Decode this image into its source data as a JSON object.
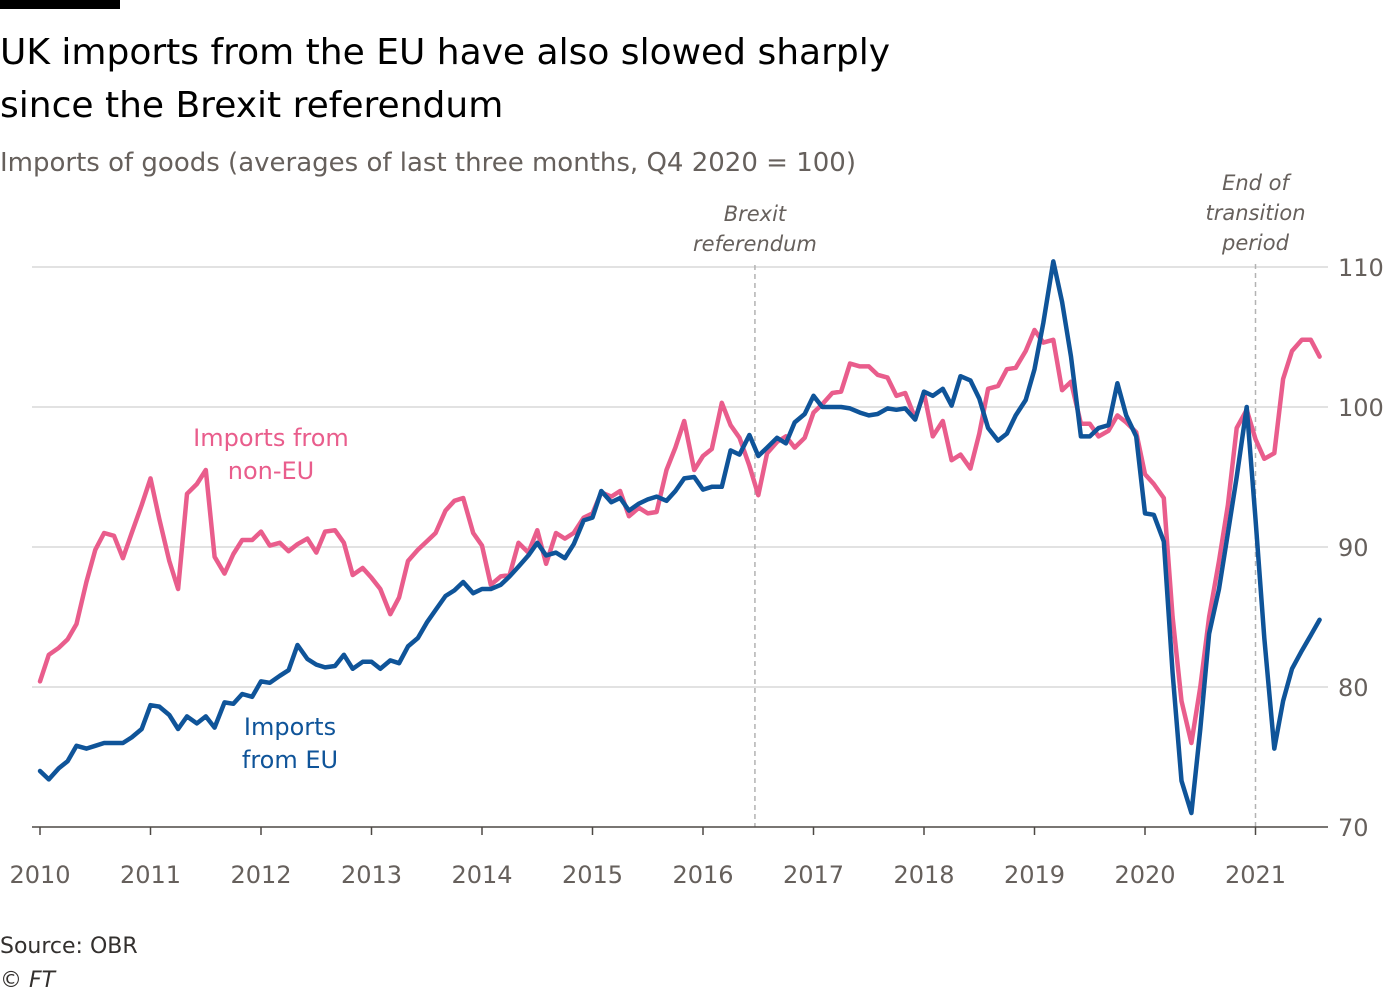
{
  "header": {
    "title_line1": "UK imports from the EU have also slowed sharply",
    "title_line2": "since the Brexit referendum",
    "subtitle": "Imports of goods (averages of last three months, Q4 2020 = 100)"
  },
  "footer": {
    "source": "Source: OBR",
    "credit": "© FT"
  },
  "colors": {
    "eu": "#0f5499",
    "non_eu": "#e95d8c",
    "grid": "#d9d9d9",
    "axis_text": "#66605c",
    "annotation": "#66605c"
  },
  "chart_data": {
    "type": "line",
    "title": "UK imports from the EU have also slowed sharply since the Brexit referendum",
    "subtitle": "Imports of goods (averages of last three months, Q4 2020 = 100)",
    "xlabel": "",
    "ylabel": "",
    "xlim": [
      2010,
      2021.75
    ],
    "ylim": [
      70,
      110
    ],
    "y_axis_position": "right",
    "yticks": [
      70,
      80,
      90,
      100,
      110
    ],
    "xticks": [
      "2010",
      "2011",
      "2012",
      "2013",
      "2014",
      "2015",
      "2016",
      "2017",
      "2018",
      "2019",
      "2020",
      "2021"
    ],
    "grid": "horizontal",
    "annotations": [
      {
        "x": 2016.47,
        "line1": "Brexit",
        "line2": "referendum",
        "line3": ""
      },
      {
        "x": 2021.0,
        "line1": "End of",
        "line2": "transition",
        "line3": "period"
      }
    ],
    "series": [
      {
        "name": "Imports from non-EU",
        "label_line1": "Imports from",
        "label_line2": "non-EU",
        "color": "#e95d8c",
        "points": [
          [
            2010.0,
            80.4
          ],
          [
            2010.08,
            82.3
          ],
          [
            2010.17,
            82.8
          ],
          [
            2010.25,
            83.4
          ],
          [
            2010.33,
            84.5
          ],
          [
            2010.42,
            87.5
          ],
          [
            2010.5,
            89.8
          ],
          [
            2010.58,
            91.0
          ],
          [
            2010.67,
            90.8
          ],
          [
            2010.75,
            89.2
          ],
          [
            2010.83,
            91.0
          ],
          [
            2010.92,
            93.0
          ],
          [
            2011.0,
            94.9
          ],
          [
            2011.08,
            92.0
          ],
          [
            2011.17,
            89.0
          ],
          [
            2011.25,
            87.0
          ],
          [
            2011.33,
            93.8
          ],
          [
            2011.42,
            94.5
          ],
          [
            2011.5,
            95.5
          ],
          [
            2011.58,
            89.3
          ],
          [
            2011.67,
            88.1
          ],
          [
            2011.75,
            89.5
          ],
          [
            2011.83,
            90.5
          ],
          [
            2011.92,
            90.5
          ],
          [
            2012.0,
            91.1
          ],
          [
            2012.08,
            90.1
          ],
          [
            2012.17,
            90.3
          ],
          [
            2012.25,
            89.7
          ],
          [
            2012.33,
            90.2
          ],
          [
            2012.42,
            90.6
          ],
          [
            2012.5,
            89.6
          ],
          [
            2012.58,
            91.1
          ],
          [
            2012.67,
            91.2
          ],
          [
            2012.75,
            90.3
          ],
          [
            2012.83,
            88.0
          ],
          [
            2012.92,
            88.5
          ],
          [
            2013.0,
            87.8
          ],
          [
            2013.08,
            87.0
          ],
          [
            2013.17,
            85.2
          ],
          [
            2013.25,
            86.4
          ],
          [
            2013.33,
            89.0
          ],
          [
            2013.42,
            89.8
          ],
          [
            2013.5,
            90.4
          ],
          [
            2013.58,
            91.0
          ],
          [
            2013.67,
            92.6
          ],
          [
            2013.75,
            93.3
          ],
          [
            2013.83,
            93.5
          ],
          [
            2013.92,
            91.0
          ],
          [
            2014.0,
            90.1
          ],
          [
            2014.08,
            87.3
          ],
          [
            2014.17,
            87.9
          ],
          [
            2014.25,
            88.0
          ],
          [
            2014.33,
            90.3
          ],
          [
            2014.42,
            89.6
          ],
          [
            2014.5,
            91.2
          ],
          [
            2014.58,
            88.8
          ],
          [
            2014.67,
            91.0
          ],
          [
            2014.75,
            90.6
          ],
          [
            2014.83,
            91.0
          ],
          [
            2014.92,
            92.1
          ],
          [
            2015.0,
            92.4
          ],
          [
            2015.08,
            93.9
          ],
          [
            2015.17,
            93.6
          ],
          [
            2015.25,
            94.0
          ],
          [
            2015.33,
            92.2
          ],
          [
            2015.42,
            92.8
          ],
          [
            2015.5,
            92.4
          ],
          [
            2015.58,
            92.5
          ],
          [
            2015.67,
            95.5
          ],
          [
            2015.75,
            97.1
          ],
          [
            2015.83,
            99.0
          ],
          [
            2015.92,
            95.5
          ],
          [
            2016.0,
            96.5
          ],
          [
            2016.08,
            97.0
          ],
          [
            2016.17,
            100.3
          ],
          [
            2016.25,
            98.7
          ],
          [
            2016.33,
            97.8
          ],
          [
            2016.42,
            95.8
          ],
          [
            2016.5,
            93.7
          ],
          [
            2016.58,
            96.7
          ],
          [
            2016.67,
            97.5
          ],
          [
            2016.75,
            97.9
          ],
          [
            2016.83,
            97.1
          ],
          [
            2016.92,
            97.8
          ],
          [
            2017.0,
            99.6
          ],
          [
            2017.08,
            100.2
          ],
          [
            2017.17,
            101.0
          ],
          [
            2017.25,
            101.1
          ],
          [
            2017.33,
            103.1
          ],
          [
            2017.42,
            102.9
          ],
          [
            2017.5,
            102.9
          ],
          [
            2017.58,
            102.3
          ],
          [
            2017.67,
            102.1
          ],
          [
            2017.75,
            100.8
          ],
          [
            2017.83,
            101.0
          ],
          [
            2017.92,
            99.2
          ],
          [
            2018.0,
            101.0
          ],
          [
            2018.08,
            97.9
          ],
          [
            2018.17,
            99.0
          ],
          [
            2018.25,
            96.2
          ],
          [
            2018.33,
            96.6
          ],
          [
            2018.42,
            95.6
          ],
          [
            2018.5,
            98.1
          ],
          [
            2018.58,
            101.3
          ],
          [
            2018.67,
            101.5
          ],
          [
            2018.75,
            102.7
          ],
          [
            2018.83,
            102.8
          ],
          [
            2018.92,
            104.0
          ],
          [
            2019.0,
            105.5
          ],
          [
            2019.08,
            104.6
          ],
          [
            2019.17,
            104.8
          ],
          [
            2019.25,
            101.2
          ],
          [
            2019.33,
            101.8
          ],
          [
            2019.42,
            98.8
          ],
          [
            2019.5,
            98.8
          ],
          [
            2019.58,
            97.9
          ],
          [
            2019.67,
            98.3
          ],
          [
            2019.75,
            99.4
          ],
          [
            2019.83,
            98.9
          ],
          [
            2019.92,
            98.2
          ],
          [
            2020.0,
            95.2
          ],
          [
            2020.08,
            94.5
          ],
          [
            2020.17,
            93.5
          ],
          [
            2020.25,
            85.0
          ],
          [
            2020.33,
            79.0
          ],
          [
            2020.42,
            76.0
          ],
          [
            2020.5,
            80.0
          ],
          [
            2020.58,
            85.0
          ],
          [
            2020.67,
            89.0
          ],
          [
            2020.75,
            93.0
          ],
          [
            2020.83,
            98.5
          ],
          [
            2020.92,
            99.8
          ],
          [
            2021.0,
            97.7
          ],
          [
            2021.08,
            96.3
          ],
          [
            2021.17,
            96.7
          ],
          [
            2021.25,
            102.0
          ],
          [
            2021.33,
            104.0
          ],
          [
            2021.42,
            104.8
          ],
          [
            2021.5,
            104.8
          ],
          [
            2021.58,
            103.6
          ]
        ]
      },
      {
        "name": "Imports from EU",
        "label_line1": "Imports",
        "label_line2": "from EU",
        "color": "#0f5499",
        "points": [
          [
            2010.0,
            74.0
          ],
          [
            2010.08,
            73.4
          ],
          [
            2010.17,
            74.2
          ],
          [
            2010.25,
            74.7
          ],
          [
            2010.33,
            75.8
          ],
          [
            2010.42,
            75.6
          ],
          [
            2010.5,
            75.8
          ],
          [
            2010.58,
            76.0
          ],
          [
            2010.67,
            76.0
          ],
          [
            2010.75,
            76.0
          ],
          [
            2010.83,
            76.4
          ],
          [
            2010.92,
            77.0
          ],
          [
            2011.0,
            78.7
          ],
          [
            2011.08,
            78.6
          ],
          [
            2011.17,
            78.0
          ],
          [
            2011.25,
            77.0
          ],
          [
            2011.33,
            77.9
          ],
          [
            2011.42,
            77.4
          ],
          [
            2011.5,
            77.9
          ],
          [
            2011.58,
            77.1
          ],
          [
            2011.67,
            78.9
          ],
          [
            2011.75,
            78.8
          ],
          [
            2011.83,
            79.5
          ],
          [
            2011.92,
            79.3
          ],
          [
            2012.0,
            80.4
          ],
          [
            2012.08,
            80.3
          ],
          [
            2012.17,
            80.8
          ],
          [
            2012.25,
            81.2
          ],
          [
            2012.33,
            83.0
          ],
          [
            2012.42,
            82.0
          ],
          [
            2012.5,
            81.6
          ],
          [
            2012.58,
            81.4
          ],
          [
            2012.67,
            81.5
          ],
          [
            2012.75,
            82.3
          ],
          [
            2012.83,
            81.3
          ],
          [
            2012.92,
            81.8
          ],
          [
            2013.0,
            81.8
          ],
          [
            2013.08,
            81.3
          ],
          [
            2013.17,
            81.9
          ],
          [
            2013.25,
            81.7
          ],
          [
            2013.33,
            82.9
          ],
          [
            2013.42,
            83.5
          ],
          [
            2013.5,
            84.6
          ],
          [
            2013.58,
            85.5
          ],
          [
            2013.67,
            86.5
          ],
          [
            2013.75,
            86.9
          ],
          [
            2013.83,
            87.5
          ],
          [
            2013.92,
            86.7
          ],
          [
            2014.0,
            87.0
          ],
          [
            2014.08,
            87.0
          ],
          [
            2014.17,
            87.3
          ],
          [
            2014.25,
            87.9
          ],
          [
            2014.33,
            88.6
          ],
          [
            2014.42,
            89.4
          ],
          [
            2014.5,
            90.3
          ],
          [
            2014.58,
            89.4
          ],
          [
            2014.67,
            89.6
          ],
          [
            2014.75,
            89.2
          ],
          [
            2014.83,
            90.2
          ],
          [
            2014.92,
            91.9
          ],
          [
            2015.0,
            92.1
          ],
          [
            2015.08,
            94.0
          ],
          [
            2015.17,
            93.2
          ],
          [
            2015.25,
            93.5
          ],
          [
            2015.33,
            92.6
          ],
          [
            2015.42,
            93.1
          ],
          [
            2015.5,
            93.4
          ],
          [
            2015.58,
            93.6
          ],
          [
            2015.67,
            93.3
          ],
          [
            2015.75,
            94.0
          ],
          [
            2015.83,
            94.9
          ],
          [
            2015.92,
            95.0
          ],
          [
            2016.0,
            94.1
          ],
          [
            2016.08,
            94.3
          ],
          [
            2016.17,
            94.3
          ],
          [
            2016.25,
            96.9
          ],
          [
            2016.33,
            96.6
          ],
          [
            2016.42,
            98.0
          ],
          [
            2016.5,
            96.5
          ],
          [
            2016.58,
            97.1
          ],
          [
            2016.67,
            97.8
          ],
          [
            2016.75,
            97.4
          ],
          [
            2016.83,
            98.9
          ],
          [
            2016.92,
            99.5
          ],
          [
            2017.0,
            100.8
          ],
          [
            2017.08,
            100.0
          ],
          [
            2017.17,
            100.0
          ],
          [
            2017.25,
            100.0
          ],
          [
            2017.33,
            99.9
          ],
          [
            2017.42,
            99.6
          ],
          [
            2017.5,
            99.4
          ],
          [
            2017.58,
            99.5
          ],
          [
            2017.67,
            99.9
          ],
          [
            2017.75,
            99.8
          ],
          [
            2017.83,
            99.9
          ],
          [
            2017.92,
            99.1
          ],
          [
            2018.0,
            101.1
          ],
          [
            2018.08,
            100.8
          ],
          [
            2018.17,
            101.3
          ],
          [
            2018.25,
            100.1
          ],
          [
            2018.33,
            102.2
          ],
          [
            2018.42,
            101.9
          ],
          [
            2018.5,
            100.6
          ],
          [
            2018.58,
            98.5
          ],
          [
            2018.67,
            97.6
          ],
          [
            2018.75,
            98.1
          ],
          [
            2018.83,
            99.4
          ],
          [
            2018.92,
            100.5
          ],
          [
            2019.0,
            102.7
          ],
          [
            2019.08,
            106.0
          ],
          [
            2019.17,
            110.4
          ],
          [
            2019.25,
            107.5
          ],
          [
            2019.33,
            103.6
          ],
          [
            2019.42,
            97.9
          ],
          [
            2019.5,
            97.9
          ],
          [
            2019.58,
            98.5
          ],
          [
            2019.67,
            98.7
          ],
          [
            2019.75,
            101.7
          ],
          [
            2019.83,
            99.4
          ],
          [
            2019.92,
            97.9
          ],
          [
            2020.0,
            92.4
          ],
          [
            2020.08,
            92.3
          ],
          [
            2020.17,
            90.4
          ],
          [
            2020.25,
            81.0
          ],
          [
            2020.33,
            73.3
          ],
          [
            2020.42,
            71.0
          ],
          [
            2020.5,
            77.0
          ],
          [
            2020.58,
            83.8
          ],
          [
            2020.67,
            87.0
          ],
          [
            2020.75,
            91.0
          ],
          [
            2020.83,
            95.0
          ],
          [
            2020.92,
            100.0
          ],
          [
            2021.0,
            92.0
          ],
          [
            2021.08,
            83.5
          ],
          [
            2021.17,
            75.6
          ],
          [
            2021.25,
            79.0
          ],
          [
            2021.33,
            81.3
          ],
          [
            2021.42,
            82.6
          ],
          [
            2021.5,
            83.7
          ],
          [
            2021.58,
            84.8
          ]
        ]
      }
    ]
  }
}
